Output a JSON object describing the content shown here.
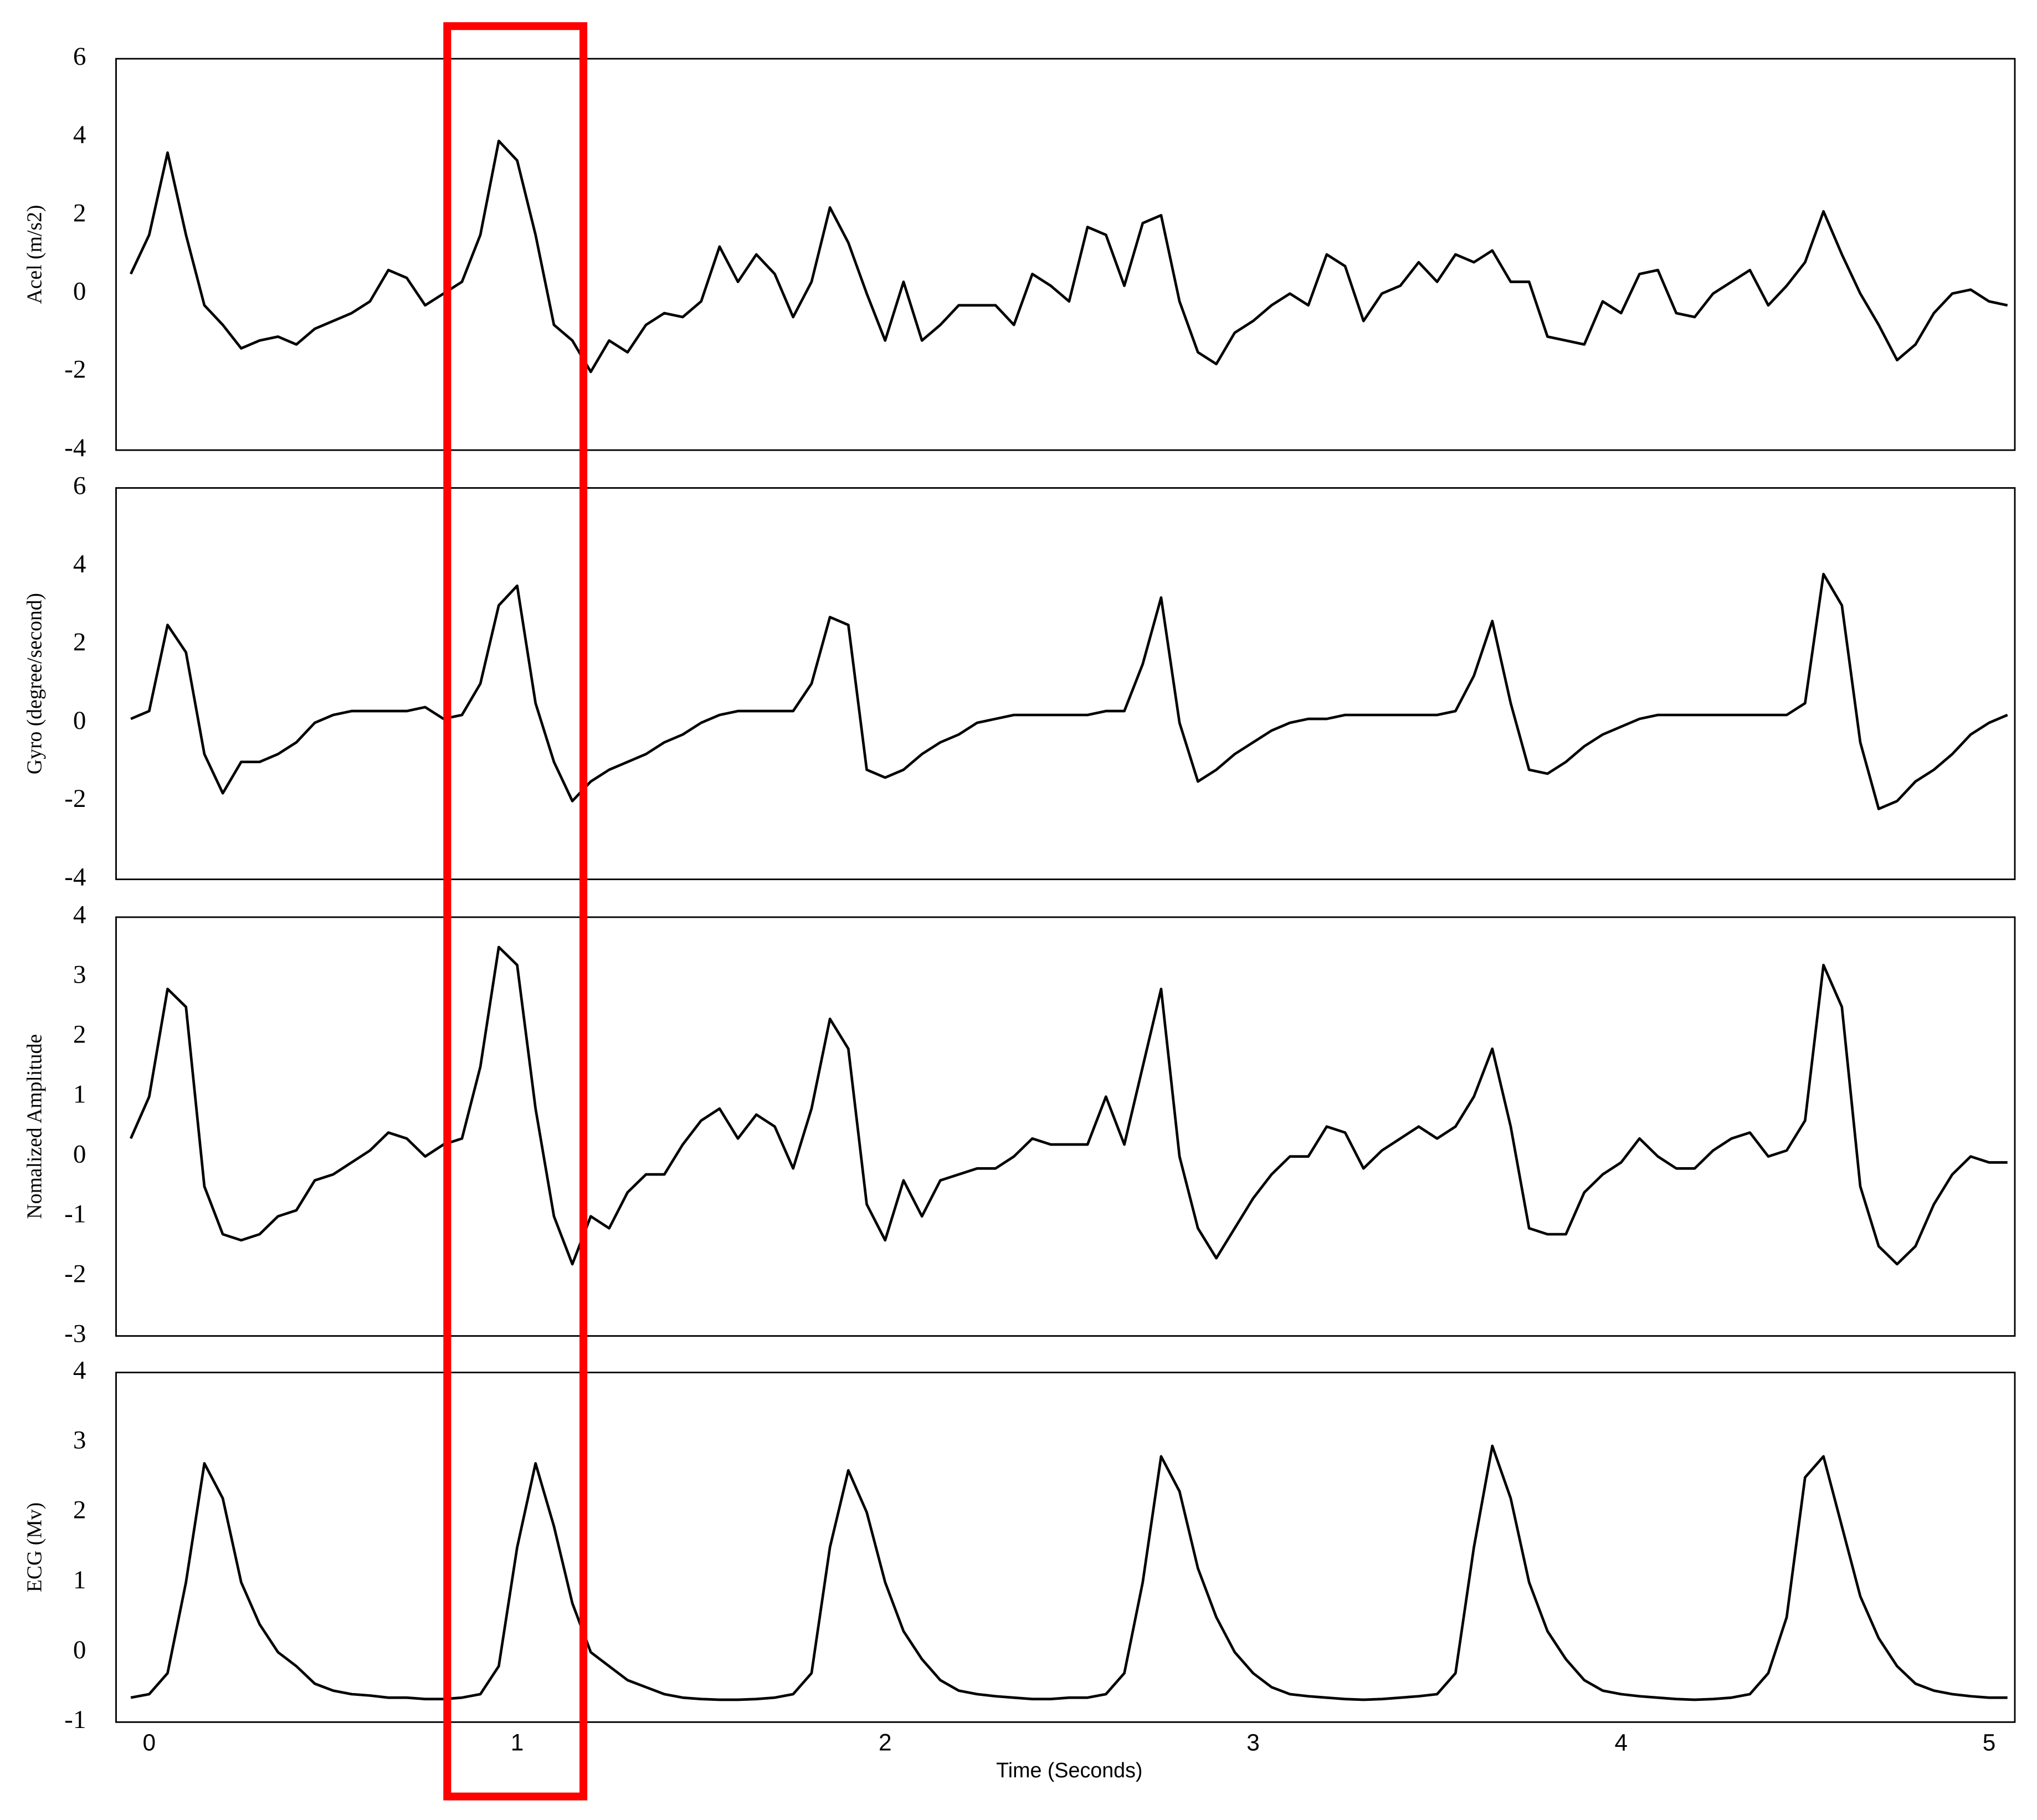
{
  "chart_data": {
    "type": "line",
    "xlabel": "Time (Seconds)",
    "xlim": [
      -0.09,
      5.07
    ],
    "xticks": [
      0,
      1,
      2,
      3,
      4,
      5
    ],
    "line_color": "#000000",
    "grid": false,
    "highlight": {
      "x": [
        0.81,
        1.18
      ],
      "color": "#ff0000"
    },
    "x": [
      -0.05,
      0,
      0.05,
      0.1,
      0.15,
      0.2,
      0.25,
      0.3,
      0.35,
      0.4,
      0.45,
      0.5,
      0.55,
      0.6,
      0.65,
      0.7,
      0.75,
      0.8,
      0.85,
      0.9,
      0.95,
      1,
      1.05,
      1.1,
      1.15,
      1.2,
      1.25,
      1.3,
      1.35,
      1.4,
      1.45,
      1.5,
      1.55,
      1.6,
      1.65,
      1.7,
      1.75,
      1.8,
      1.85,
      1.9,
      1.95,
      2,
      2.05,
      2.1,
      2.15,
      2.2,
      2.25,
      2.3,
      2.35,
      2.4,
      2.45,
      2.5,
      2.55,
      2.6,
      2.65,
      2.7,
      2.75,
      2.8,
      2.85,
      2.9,
      2.95,
      3,
      3.05,
      3.1,
      3.15,
      3.2,
      3.25,
      3.3,
      3.35,
      3.4,
      3.45,
      3.5,
      3.55,
      3.6,
      3.65,
      3.7,
      3.75,
      3.8,
      3.85,
      3.9,
      3.95,
      4,
      4.05,
      4.1,
      4.15,
      4.2,
      4.25,
      4.3,
      4.35,
      4.4,
      4.45,
      4.5,
      4.55,
      4.6,
      4.65,
      4.7,
      4.75,
      4.8,
      4.85,
      4.9,
      4.95,
      5,
      5.05
    ],
    "panels": [
      {
        "ylabel": "Acel (m/s2)",
        "ylim": [
          -4,
          6
        ],
        "yticks": [
          -4,
          -2,
          0,
          2,
          4,
          6
        ],
        "values": [
          0.5,
          1.5,
          3.6,
          1.5,
          -0.3,
          -0.8,
          -1.4,
          -1.2,
          -1.1,
          -1.3,
          -0.9,
          -0.7,
          -0.5,
          -0.2,
          0.6,
          0.4,
          -0.3,
          0.0,
          0.3,
          1.5,
          3.9,
          3.4,
          1.5,
          -0.8,
          -1.2,
          -2.0,
          -1.2,
          -1.5,
          -0.8,
          -0.5,
          -0.6,
          -0.2,
          1.2,
          0.3,
          1.0,
          0.5,
          -0.6,
          0.3,
          2.2,
          1.3,
          0.0,
          -1.2,
          0.3,
          -1.2,
          -0.8,
          -0.3,
          -0.3,
          -0.3,
          -0.8,
          0.5,
          0.2,
          -0.2,
          1.7,
          1.5,
          0.2,
          1.8,
          2.0,
          -0.2,
          -1.5,
          -1.8,
          -1.0,
          -0.7,
          -0.3,
          0.0,
          -0.3,
          1.0,
          0.7,
          -0.7,
          0.0,
          0.2,
          0.8,
          0.3,
          1.0,
          0.8,
          1.1,
          0.3,
          0.3,
          -1.1,
          -1.2,
          -1.3,
          -0.2,
          -0.5,
          0.5,
          0.6,
          -0.5,
          -0.6,
          0.0,
          0.3,
          0.6,
          -0.3,
          0.2,
          0.8,
          2.1,
          1.0,
          0.0,
          -0.8,
          -1.7,
          -1.3,
          -0.5,
          0.0,
          0.1,
          -0.2,
          -0.3
        ]
      },
      {
        "ylabel": "Gyro (degree/second)",
        "ylim": [
          -4,
          6
        ],
        "yticks": [
          -4,
          -2,
          0,
          2,
          4,
          6
        ],
        "values": [
          0.1,
          0.3,
          2.5,
          1.8,
          -0.8,
          -1.8,
          -1.0,
          -1.0,
          -0.8,
          -0.5,
          0.0,
          0.2,
          0.3,
          0.3,
          0.3,
          0.3,
          0.4,
          0.1,
          0.2,
          1.0,
          3.0,
          3.5,
          0.5,
          -1.0,
          -2.0,
          -1.5,
          -1.2,
          -1.0,
          -0.8,
          -0.5,
          -0.3,
          0.0,
          0.2,
          0.3,
          0.3,
          0.3,
          0.3,
          1.0,
          2.7,
          2.5,
          -1.2,
          -1.4,
          -1.2,
          -0.8,
          -0.5,
          -0.3,
          0.0,
          0.1,
          0.2,
          0.2,
          0.2,
          0.2,
          0.2,
          0.3,
          0.3,
          1.5,
          3.2,
          0.0,
          -1.5,
          -1.2,
          -0.8,
          -0.5,
          -0.2,
          0.0,
          0.1,
          0.1,
          0.2,
          0.2,
          0.2,
          0.2,
          0.2,
          0.2,
          0.3,
          1.2,
          2.6,
          0.5,
          -1.2,
          -1.3,
          -1.0,
          -0.6,
          -0.3,
          -0.1,
          0.1,
          0.2,
          0.2,
          0.2,
          0.2,
          0.2,
          0.2,
          0.2,
          0.2,
          0.5,
          3.8,
          3.0,
          -0.5,
          -2.2,
          -2.0,
          -1.5,
          -1.2,
          -0.8,
          -0.3,
          0.0,
          0.2
        ]
      },
      {
        "ylabel": "Nomalized Amplitude",
        "ylim": [
          -3,
          4
        ],
        "yticks": [
          -3,
          -2,
          -1,
          0,
          1,
          2,
          3,
          4
        ],
        "values": [
          0.3,
          1.0,
          2.8,
          2.5,
          -0.5,
          -1.3,
          -1.4,
          -1.3,
          -1.0,
          -0.9,
          -0.4,
          -0.3,
          -0.1,
          0.1,
          0.4,
          0.3,
          0.0,
          0.2,
          0.3,
          1.5,
          3.5,
          3.2,
          0.8,
          -1.0,
          -1.8,
          -1.0,
          -1.2,
          -0.6,
          -0.3,
          -0.3,
          0.2,
          0.6,
          0.8,
          0.3,
          0.7,
          0.5,
          -0.2,
          0.8,
          2.3,
          1.8,
          -0.8,
          -1.4,
          -0.4,
          -1.0,
          -0.4,
          -0.3,
          -0.2,
          -0.2,
          0.0,
          0.3,
          0.2,
          0.2,
          0.2,
          1.0,
          0.2,
          1.5,
          2.8,
          0.0,
          -1.2,
          -1.7,
          -1.2,
          -0.7,
          -0.3,
          0.0,
          0.0,
          0.5,
          0.4,
          -0.2,
          0.1,
          0.3,
          0.5,
          0.3,
          0.5,
          1.0,
          1.8,
          0.5,
          -1.2,
          -1.3,
          -1.3,
          -0.6,
          -0.3,
          -0.1,
          0.3,
          0.0,
          -0.2,
          -0.2,
          0.1,
          0.3,
          0.4,
          0.0,
          0.1,
          0.6,
          3.2,
          2.5,
          -0.5,
          -1.5,
          -1.8,
          -1.5,
          -0.8,
          -0.3,
          0.0,
          -0.1,
          -0.1
        ]
      },
      {
        "ylabel": "ECG (Mv)",
        "ylim": [
          -1,
          4
        ],
        "yticks": [
          -1,
          0,
          1,
          2,
          3,
          4
        ],
        "values": [
          -0.65,
          -0.6,
          -0.3,
          1.0,
          2.7,
          2.2,
          1.0,
          0.4,
          0.0,
          -0.2,
          -0.45,
          -0.55,
          -0.6,
          -0.62,
          -0.65,
          -0.65,
          -0.67,
          -0.67,
          -0.65,
          -0.6,
          -0.2,
          1.5,
          2.7,
          1.8,
          0.7,
          0.0,
          -0.2,
          -0.4,
          -0.5,
          -0.6,
          -0.65,
          -0.67,
          -0.68,
          -0.68,
          -0.67,
          -0.65,
          -0.6,
          -0.3,
          1.5,
          2.6,
          2.0,
          1.0,
          0.3,
          -0.1,
          -0.4,
          -0.55,
          -0.6,
          -0.63,
          -0.65,
          -0.67,
          -0.67,
          -0.65,
          -0.65,
          -0.6,
          -0.3,
          1.0,
          2.8,
          2.3,
          1.2,
          0.5,
          0.0,
          -0.3,
          -0.5,
          -0.6,
          -0.63,
          -0.65,
          -0.67,
          -0.68,
          -0.67,
          -0.65,
          -0.63,
          -0.6,
          -0.3,
          1.5,
          2.95,
          2.2,
          1.0,
          0.3,
          -0.1,
          -0.4,
          -0.55,
          -0.6,
          -0.63,
          -0.65,
          -0.67,
          -0.68,
          -0.67,
          -0.65,
          -0.6,
          -0.3,
          0.5,
          2.5,
          2.8,
          1.8,
          0.8,
          0.2,
          -0.2,
          -0.45,
          -0.55,
          -0.6,
          -0.63,
          -0.65,
          -0.65
        ]
      }
    ]
  }
}
